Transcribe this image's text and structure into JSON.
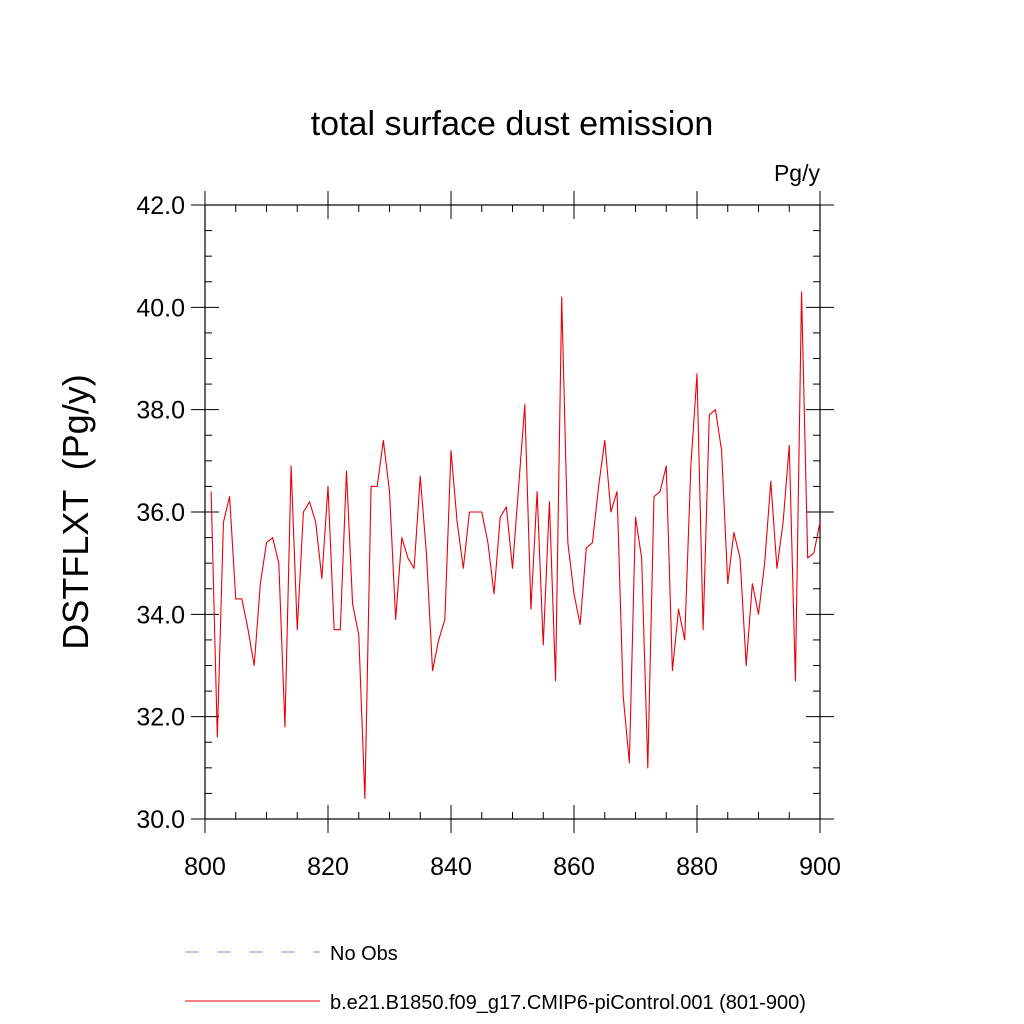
{
  "chart_data": {
    "type": "line",
    "title": "total surface dust emission",
    "units_label": "Pg/y",
    "xlabel": "",
    "ylabel": "DSTFLXT  (Pg/y)",
    "xlim": [
      800,
      900
    ],
    "ylim": [
      30.0,
      42.0
    ],
    "x_ticks": [
      800,
      820,
      840,
      860,
      880,
      900
    ],
    "x_tick_labels": [
      "800",
      "820",
      "840",
      "860",
      "880",
      "900"
    ],
    "y_ticks": [
      30,
      32,
      34,
      36,
      38,
      40,
      42
    ],
    "y_tick_labels": [
      "30.0",
      "32.0",
      "34.0",
      "36.0",
      "38.0",
      "40.0",
      "42.0"
    ],
    "grid": false,
    "series": [
      {
        "name": "b.e21.B1850.f09_g17.CMIP6-piControl.001 (801-900)",
        "color": "#e8000b",
        "style": "solid",
        "x": [
          801,
          802,
          803,
          804,
          805,
          806,
          807,
          808,
          809,
          810,
          811,
          812,
          813,
          814,
          815,
          816,
          817,
          818,
          819,
          820,
          821,
          822,
          823,
          824,
          825,
          826,
          827,
          828,
          829,
          830,
          831,
          832,
          833,
          834,
          835,
          836,
          837,
          838,
          839,
          840,
          841,
          842,
          843,
          844,
          845,
          846,
          847,
          848,
          849,
          850,
          851,
          852,
          853,
          854,
          855,
          856,
          857,
          858,
          859,
          860,
          861,
          862,
          863,
          864,
          865,
          866,
          867,
          868,
          869,
          870,
          871,
          872,
          873,
          874,
          875,
          876,
          877,
          878,
          879,
          880,
          881,
          882,
          883,
          884,
          885,
          886,
          887,
          888,
          889,
          890,
          891,
          892,
          893,
          894,
          895,
          896,
          897,
          898,
          899,
          900
        ],
        "values": [
          36.4,
          31.6,
          35.8,
          36.3,
          34.3,
          34.3,
          33.7,
          33.0,
          34.6,
          35.4,
          35.5,
          35.0,
          31.8,
          36.9,
          33.7,
          36.0,
          36.2,
          35.8,
          34.7,
          36.5,
          33.7,
          33.7,
          36.8,
          34.2,
          33.6,
          30.4,
          36.5,
          36.5,
          37.4,
          36.4,
          33.9,
          35.5,
          35.1,
          34.9,
          36.7,
          35.2,
          32.9,
          33.5,
          33.9,
          37.2,
          35.8,
          34.9,
          36.0,
          36.0,
          36.0,
          35.4,
          34.4,
          35.9,
          36.1,
          34.9,
          36.5,
          38.1,
          34.1,
          36.4,
          33.4,
          36.2,
          32.7,
          40.2,
          35.4,
          34.4,
          33.8,
          35.3,
          35.4,
          36.5,
          37.4,
          36.0,
          36.4,
          32.4,
          31.1,
          35.9,
          35.1,
          31.0,
          36.3,
          36.4,
          36.9,
          32.9,
          34.1,
          33.5,
          36.9,
          38.7,
          33.7,
          37.9,
          38.0,
          37.2,
          34.6,
          35.6,
          35.1,
          33.0,
          34.6,
          34.0,
          35.0,
          36.6,
          34.9,
          35.8,
          37.3,
          32.7,
          40.3,
          35.1,
          35.2,
          35.8
        ]
      }
    ],
    "legend": {
      "placement": "bottom",
      "entries": [
        {
          "label": "No Obs",
          "color": "#8f8fd6",
          "style": "dashed"
        },
        {
          "label": "b.e21.B1850.f09_g17.CMIP6-piControl.001 (801-900)",
          "color": "#e8000b",
          "style": "solid"
        }
      ]
    }
  }
}
